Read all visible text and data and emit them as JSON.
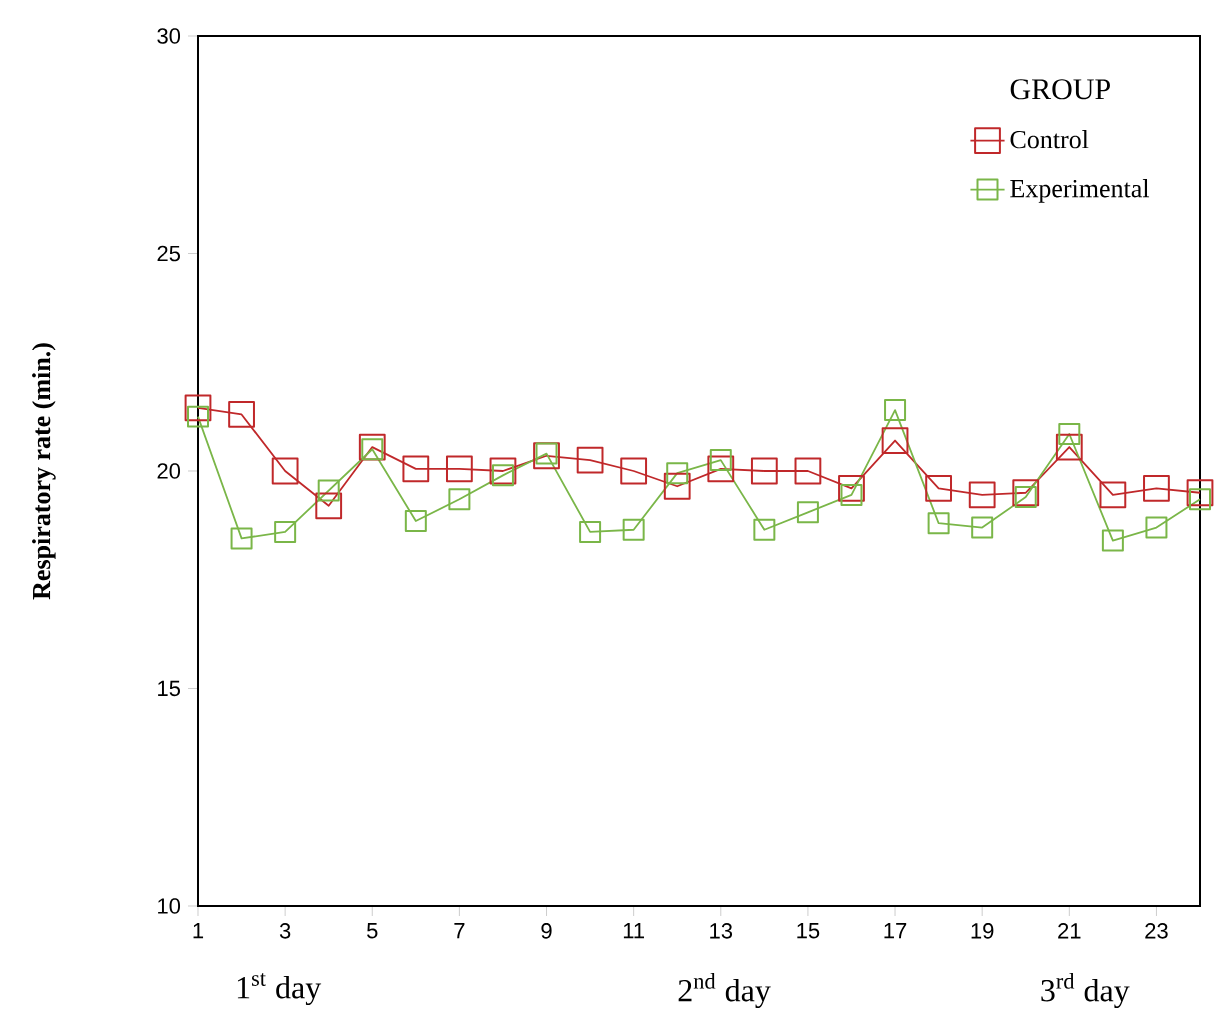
{
  "chart_data": {
    "type": "line",
    "ylabel": "Respiratory rate (min.)",
    "legend_title": "GROUP",
    "x": [
      1,
      2,
      3,
      4,
      5,
      6,
      7,
      8,
      9,
      10,
      11,
      12,
      13,
      14,
      15,
      16,
      17,
      18,
      19,
      20,
      21,
      22,
      23,
      24
    ],
    "series": [
      {
        "name": "Control",
        "color": "#c0282a",
        "values": [
          21.45,
          21.3,
          20.0,
          19.2,
          20.55,
          20.05,
          20.05,
          20.0,
          20.35,
          20.25,
          20.0,
          19.65,
          20.05,
          20.0,
          20.0,
          19.6,
          20.7,
          19.6,
          19.45,
          19.5,
          20.55,
          19.45,
          19.6,
          19.5
        ]
      },
      {
        "name": "Experimental",
        "color": "#7ab648",
        "values": [
          21.25,
          18.45,
          18.6,
          19.55,
          20.5,
          18.85,
          19.35,
          19.9,
          20.4,
          18.6,
          18.65,
          19.95,
          20.25,
          18.65,
          19.05,
          19.45,
          21.4,
          18.8,
          18.7,
          19.4,
          20.85,
          18.4,
          18.7,
          19.35
        ]
      }
    ],
    "xlim": [
      1,
      24
    ],
    "ylim": [
      10,
      30
    ],
    "xticks": [
      1,
      3,
      5,
      7,
      9,
      11,
      13,
      15,
      17,
      19,
      21,
      23
    ],
    "yticks": [
      10,
      15,
      20,
      25,
      30
    ],
    "legend": "top right",
    "marker": "square",
    "grid": false,
    "annotations": [
      "1$^{st}$ day",
      "2$^{nd}$ day",
      "3$^{rd}$ day"
    ]
  }
}
